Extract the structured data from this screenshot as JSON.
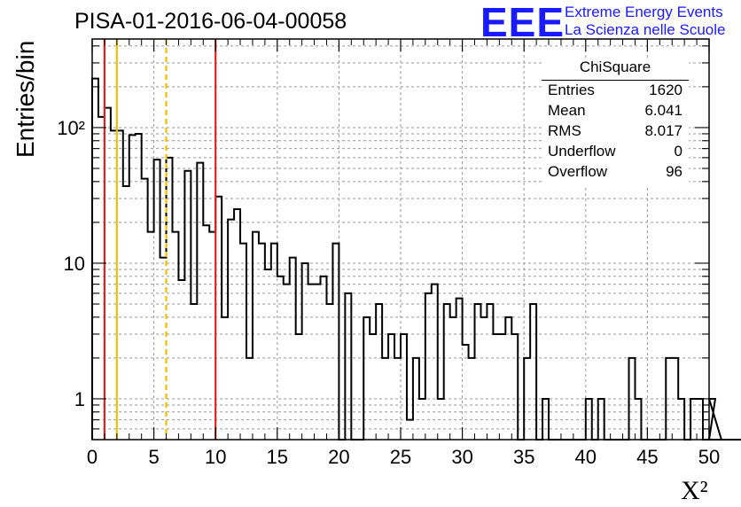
{
  "title": "PISA-01-2016-06-04-00058",
  "logo": {
    "mark": "EEE",
    "line1": "Extreme Energy Events",
    "line2": "La Scienza nelle Scuole"
  },
  "stats_box": {
    "title": "ChiSquare",
    "rows": [
      {
        "key": "Entries",
        "value": "1620"
      },
      {
        "key": "Mean",
        "value": "6.041"
      },
      {
        "key": "RMS",
        "value": "8.017"
      },
      {
        "key": "Underflow",
        "value": "0"
      },
      {
        "key": "Overflow",
        "value": "96"
      }
    ]
  },
  "colors": {
    "histogram": "#000000",
    "red_line": "#e02020",
    "yellow_line": "#f0c000",
    "grid": "#9a9a9a"
  },
  "chart_data": {
    "type": "histogram",
    "title": "PISA-01-2016-06-04-00058",
    "xlabel": "X²",
    "ylabel": "Entries/bin",
    "xlim": [
      0,
      50
    ],
    "ylim": [
      0.5,
      450
    ],
    "yscale": "log",
    "grid": true,
    "legend": "none",
    "x_ticks": [
      0,
      5,
      10,
      15,
      20,
      25,
      30,
      35,
      40,
      45,
      50
    ],
    "x_tick_labels": [
      "0",
      "5",
      "10",
      "15",
      "20",
      "25",
      "30",
      "35",
      "40",
      "45",
      "50"
    ],
    "y_ticks": [
      1,
      10,
      100
    ],
    "y_tick_labels": [
      "1",
      "10",
      "10²"
    ],
    "bin_width": 0.5,
    "bin_start": 0,
    "values": [
      230,
      120,
      140,
      95,
      95,
      37,
      88,
      90,
      42,
      17,
      58,
      11,
      60,
      17,
      7.5,
      48,
      5,
      55,
      19,
      17,
      31,
      4,
      21,
      25,
      14,
      2,
      17,
      14,
      9,
      14,
      8,
      7,
      11,
      3,
      10,
      7,
      7,
      8,
      5,
      14,
      0,
      6,
      0,
      0,
      4,
      3,
      5,
      2,
      3,
      2,
      3,
      0.7,
      2,
      1,
      6,
      7,
      1,
      5,
      4,
      5.5,
      2.5,
      2,
      5,
      4,
      5,
      3,
      3,
      4,
      3,
      0.5,
      2,
      5,
      0.5,
      1,
      0.5,
      0.5,
      0.5,
      0.5,
      0.5,
      0.5,
      1,
      0.5,
      1,
      0.5,
      0.5,
      0.5,
      0.5,
      2,
      1,
      0.5,
      0.5,
      0.5,
      0.5,
      2,
      2,
      1,
      0.5,
      1,
      1,
      0.5,
      0.5,
      1,
      0.5,
      0.5,
      0.5,
      0.5,
      0.5,
      0.5,
      0.5,
      0.5,
      0.5,
      0.5,
      0.5,
      0.5,
      0.5,
      0.5,
      0.5,
      0.5,
      0.5,
      0.5,
      0.5,
      0.5
    ],
    "vertical_lines": [
      {
        "x": 1,
        "color": "red",
        "style": "solid"
      },
      {
        "x": 2,
        "color": "yellow",
        "style": "solid"
      },
      {
        "x": 6,
        "color": "yellow",
        "style": "dashed"
      },
      {
        "x": 10,
        "color": "red",
        "style": "solid"
      }
    ]
  }
}
